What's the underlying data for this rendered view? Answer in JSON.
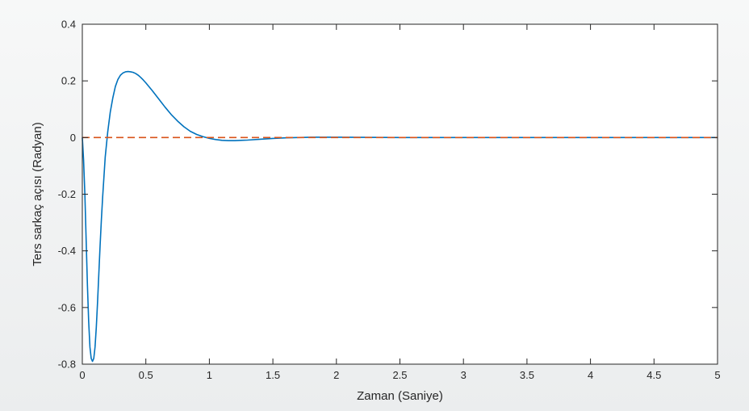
{
  "chart_data": {
    "type": "line",
    "title": "",
    "xlabel": "Zaman (Saniye)",
    "ylabel": "Ters sarkaç açısı (Radyan)",
    "xlim": [
      0,
      5
    ],
    "ylim": [
      -0.8,
      0.4
    ],
    "xticks": [
      0,
      0.5,
      1,
      1.5,
      2,
      2.5,
      3,
      3.5,
      4,
      4.5,
      5
    ],
    "xtick_labels": [
      "0",
      "0.5",
      "1",
      "1.5",
      "2",
      "2.5",
      "3",
      "3.5",
      "4",
      "4.5",
      "5"
    ],
    "yticks": [
      -0.8,
      -0.6,
      -0.4,
      -0.2,
      0,
      0.2,
      0.4
    ],
    "ytick_labels": [
      "-0.8",
      "-0.6",
      "-0.4",
      "-0.2",
      "0",
      "0.2",
      "0.4"
    ],
    "grid": false,
    "legend": "none",
    "series": [
      {
        "style": "solid",
        "color": "#0072bd",
        "x": [
          0,
          0.01,
          0.02,
          0.03,
          0.04,
          0.05,
          0.06,
          0.07,
          0.08,
          0.09,
          0.1,
          0.11,
          0.12,
          0.13,
          0.14,
          0.15,
          0.16,
          0.18,
          0.2,
          0.22,
          0.24,
          0.26,
          0.28,
          0.3,
          0.32,
          0.34,
          0.36,
          0.38,
          0.4,
          0.42,
          0.44,
          0.46,
          0.48,
          0.5,
          0.55,
          0.6,
          0.65,
          0.7,
          0.75,
          0.8,
          0.85,
          0.9,
          0.95,
          1.0,
          1.05,
          1.1,
          1.15,
          1.2,
          1.25,
          1.3,
          1.4,
          1.5,
          1.6,
          1.7,
          1.8,
          1.9,
          2.0,
          2.5,
          3.0,
          3.5,
          4.0,
          4.5,
          5.0
        ],
        "y": [
          0,
          -0.08,
          -0.2,
          -0.36,
          -0.52,
          -0.65,
          -0.74,
          -0.78,
          -0.79,
          -0.78,
          -0.74,
          -0.67,
          -0.58,
          -0.48,
          -0.38,
          -0.29,
          -0.21,
          -0.07,
          0.02,
          0.09,
          0.14,
          0.18,
          0.205,
          0.22,
          0.228,
          0.232,
          0.233,
          0.232,
          0.23,
          0.226,
          0.22,
          0.212,
          0.203,
          0.193,
          0.166,
          0.137,
          0.108,
          0.081,
          0.058,
          0.038,
          0.022,
          0.011,
          0.003,
          -0.003,
          -0.007,
          -0.01,
          -0.011,
          -0.011,
          -0.01,
          -0.009,
          -0.006,
          -0.003,
          -0.001,
          0,
          0.001,
          0.001,
          0.001,
          0,
          0,
          0,
          0,
          0,
          0
        ]
      },
      {
        "style": "dashed",
        "color": "#d95319",
        "x": [
          0,
          5
        ],
        "y": [
          0,
          0
        ]
      }
    ]
  }
}
